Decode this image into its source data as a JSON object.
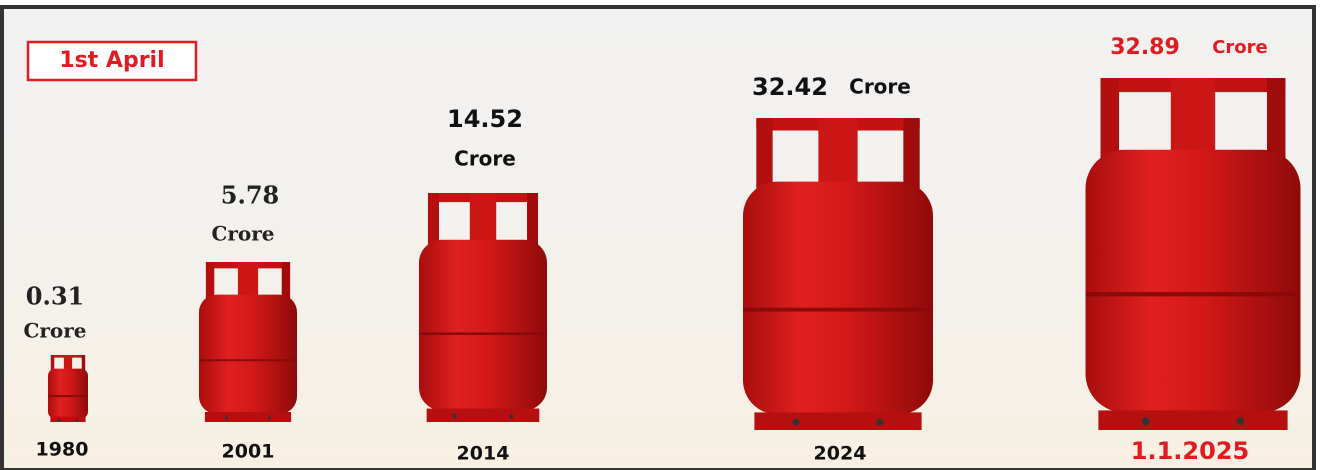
{
  "badge": "1st April",
  "items": [
    {
      "value": 0.31,
      "unit": "Crore",
      "year": "1980"
    },
    {
      "value": 5.78,
      "unit": "Crore",
      "year": "2001"
    },
    {
      "value": 14.52,
      "unit": "Crore",
      "year": "2014"
    },
    {
      "value": 32.42,
      "unit": "Crore",
      "year": "2024"
    },
    {
      "value": 32.89,
      "unit": "Crore",
      "year": "1.1.2025"
    }
  ]
}
